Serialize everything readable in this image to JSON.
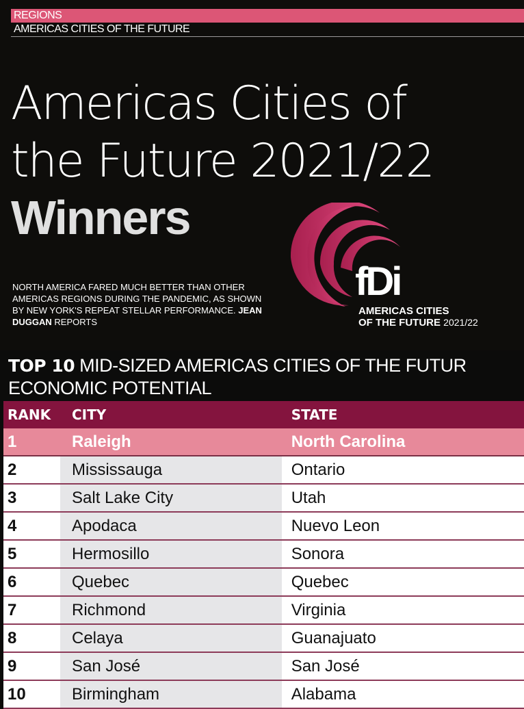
{
  "header": {
    "section": "REGIONS",
    "subsection": "AMERICAS CITIES OF THE FUTURE"
  },
  "article": {
    "title_line1": "Americas Cities of",
    "title_line2": "the Future 2021/22",
    "title_line3": "Winners",
    "deck": "NORTH AMERICA FARED MUCH BETTER THAN OTHER AMERICAS REGIONS DURING THE PANDEMIC, AS SHOWN BY NEW YORK'S REPEAT STELLAR PERFORMANCE.",
    "author": "JEAN DUGGAN",
    "reports": "REPORTS"
  },
  "logo": {
    "brand": "fDi",
    "line1": "AMERICAS CITIES",
    "line2": "OF THE FUTURE",
    "year": "2021/22",
    "color": "#c8336a"
  },
  "table": {
    "title_bold": "TOP 10",
    "title_rest": "MID-SIZED AMERICAS CITIES OF THE FUTUR",
    "title_line2": "ECONOMIC POTENTIAL",
    "columns": [
      "RANK",
      "CITY",
      "STATE"
    ],
    "rows": [
      {
        "rank": "1",
        "city": "Raleigh",
        "state": "North Carolina"
      },
      {
        "rank": "2",
        "city": "Mississauga",
        "state": "Ontario"
      },
      {
        "rank": "3",
        "city": "Salt Lake City",
        "state": "Utah"
      },
      {
        "rank": "4",
        "city": "Apodaca",
        "state": "Nuevo Leon"
      },
      {
        "rank": "5",
        "city": "Hermosillo",
        "state": "Sonora"
      },
      {
        "rank": "6",
        "city": "Quebec",
        "state": "Quebec"
      },
      {
        "rank": "7",
        "city": "Richmond",
        "state": "Virginia"
      },
      {
        "rank": "8",
        "city": "Celaya",
        "state": "Guanajuato"
      },
      {
        "rank": "9",
        "city": "San José",
        "state": "San José"
      },
      {
        "rank": "10",
        "city": "Birmingham",
        "state": "Alabama"
      }
    ],
    "colors": {
      "header": "#84143e",
      "highlight": "#e7899a",
      "accent": "#dc5676"
    }
  }
}
